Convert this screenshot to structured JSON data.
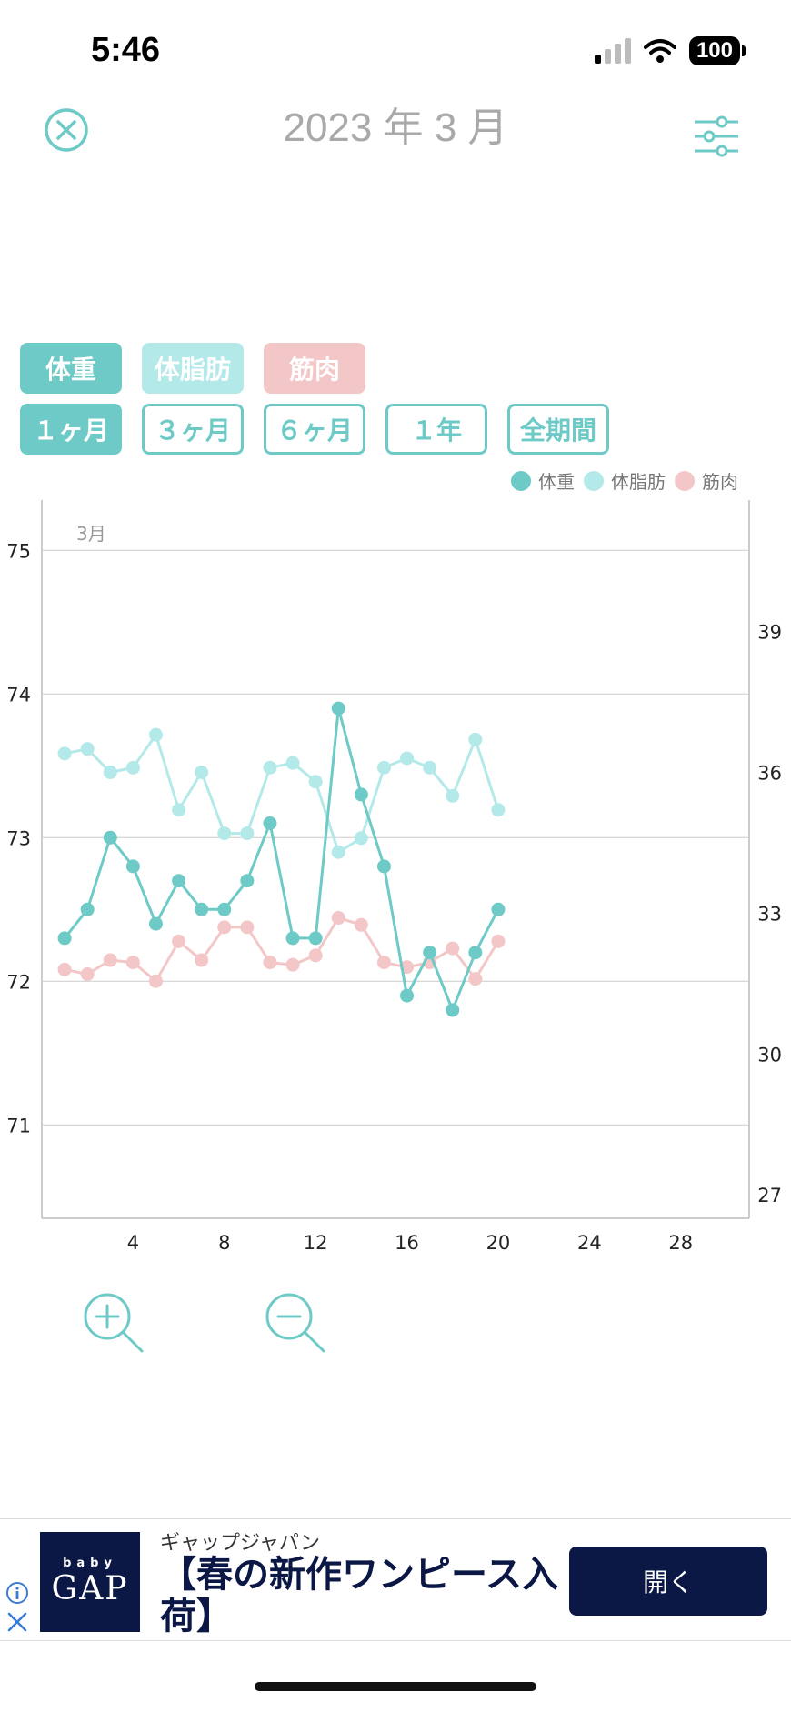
{
  "status_bar": {
    "time": "5:46",
    "battery": "100"
  },
  "header": {
    "title": "2023 年 3 月"
  },
  "type_chips": [
    {
      "label": "体重",
      "color": "#6ecac6"
    },
    {
      "label": "体脂肪",
      "color": "#b3e9e8"
    },
    {
      "label": "筋肉",
      "color": "#f3c6c7"
    }
  ],
  "period_chips": [
    {
      "label": "１ヶ月",
      "active": true
    },
    {
      "label": "３ヶ月",
      "active": false
    },
    {
      "label": "６ヶ月",
      "active": false
    },
    {
      "label": "１年",
      "active": false
    },
    {
      "label": "全期間",
      "active": false
    }
  ],
  "chart_data": {
    "type": "line",
    "month_label": "3月",
    "xlim": [
      0,
      31
    ],
    "x_ticks": [
      4,
      8,
      12,
      16,
      20,
      24,
      28
    ],
    "y_left": {
      "ticks": [
        71,
        72,
        73,
        74,
        75
      ],
      "range": [
        70.35,
        75.35
      ]
    },
    "y_right": {
      "ticks": [
        27,
        30,
        33,
        36,
        39
      ],
      "range": [
        26.5,
        41.8
      ]
    },
    "grid": true,
    "legend_position": "top-right",
    "series": [
      {
        "name": "体重",
        "axis": "left",
        "color": "#6ecac6",
        "x": [
          1,
          2,
          3,
          4,
          5,
          6,
          7,
          8,
          9,
          10,
          11,
          12,
          13,
          14,
          15,
          16,
          17,
          18,
          19,
          20
        ],
        "y": [
          72.3,
          72.5,
          73.0,
          72.8,
          72.4,
          72.7,
          72.5,
          72.5,
          72.7,
          73.1,
          72.3,
          72.3,
          73.9,
          73.3,
          72.8,
          71.9,
          72.2,
          71.8,
          72.2,
          72.5
        ]
      },
      {
        "name": "体脂肪",
        "axis": "right",
        "color": "#b3e9e8",
        "x": [
          1,
          2,
          3,
          4,
          5,
          6,
          7,
          8,
          9,
          10,
          11,
          12,
          13,
          14,
          15,
          16,
          17,
          18,
          19,
          20
        ],
        "y": [
          36.4,
          36.5,
          36.0,
          36.1,
          36.8,
          35.2,
          36.0,
          34.7,
          34.7,
          36.1,
          36.2,
          35.8,
          34.3,
          34.6,
          36.1,
          36.3,
          36.1,
          35.5,
          36.7,
          35.2
        ]
      },
      {
        "name": "筋肉",
        "axis": "right",
        "color": "#f3c6c7",
        "x": [
          1,
          2,
          3,
          4,
          5,
          6,
          7,
          8,
          9,
          10,
          11,
          12,
          13,
          14,
          15,
          16,
          17,
          18,
          19,
          20
        ],
        "y": [
          31.8,
          31.7,
          32.0,
          31.95,
          31.55,
          32.4,
          32.0,
          32.7,
          32.7,
          31.95,
          31.9,
          32.1,
          32.9,
          32.75,
          31.95,
          31.85,
          31.95,
          32.25,
          31.6,
          32.4
        ]
      }
    ]
  },
  "ad": {
    "logo_small": "baby",
    "logo_big": "GAP",
    "sponsor": "ギャップジャパン",
    "headline": "【春の新作ワンピース入荷】",
    "cta": "開く"
  },
  "colors": {
    "accent": "#6ecac6",
    "ad_navy": "#0b1745"
  }
}
